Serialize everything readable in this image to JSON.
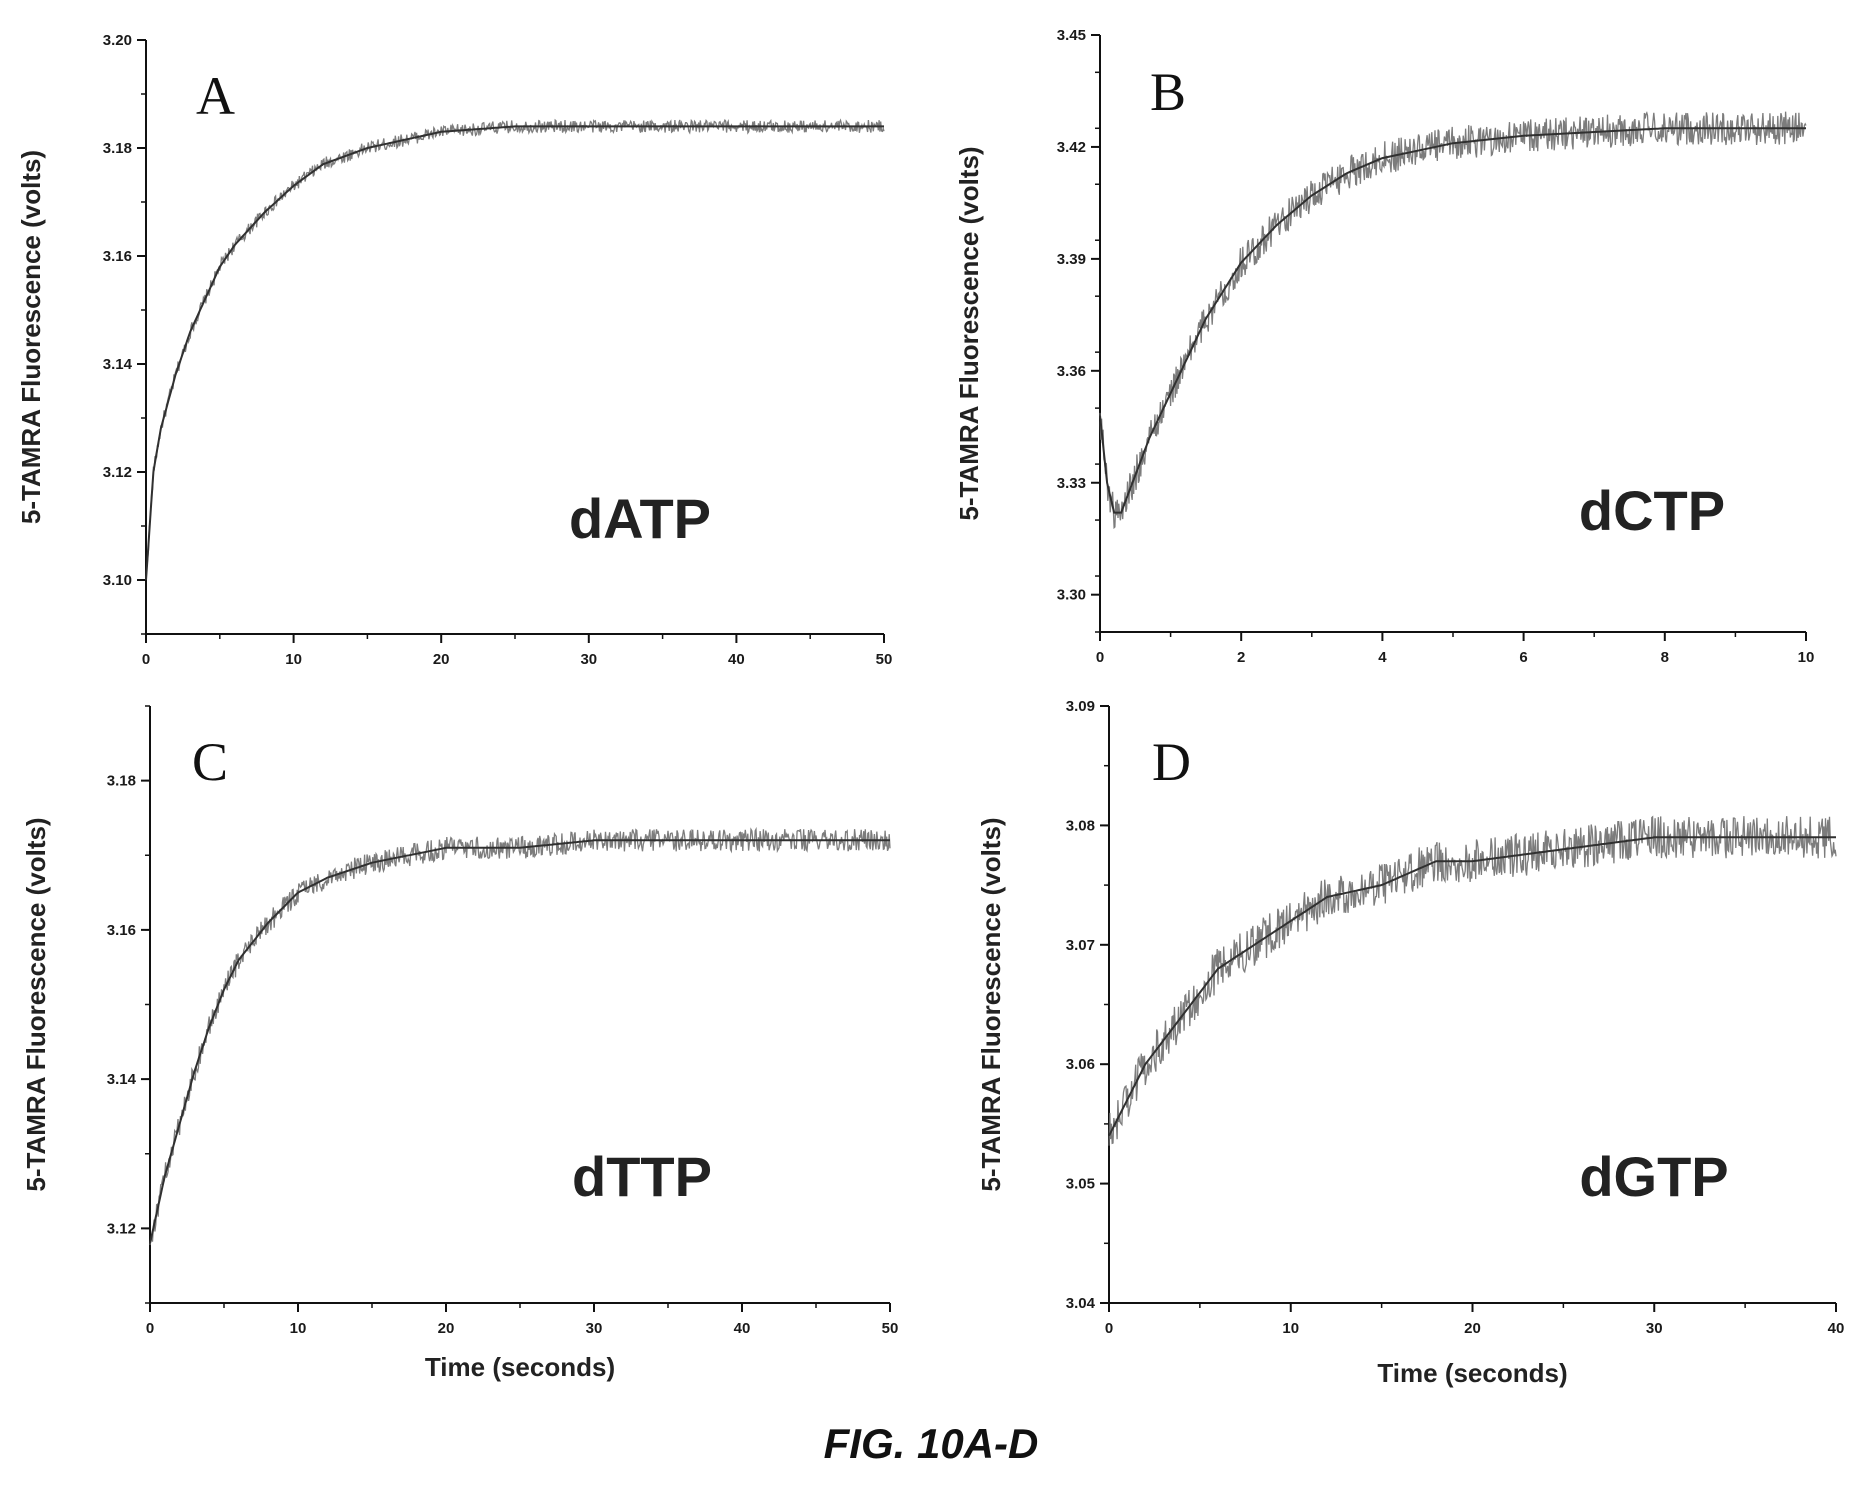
{
  "caption": "FIG. 10A-D",
  "colors": {
    "trace": "#6e6e6e",
    "fit": "#303030",
    "axis": "#111111"
  },
  "chart_data": [
    {
      "id": "A",
      "type": "line",
      "panel_label": "A",
      "annotation": "dATP",
      "xlabel": "",
      "ylabel": "5-TAMRA Fluorescence (volts)",
      "xlim": [
        0,
        50
      ],
      "ylim": [
        3.09,
        3.2
      ],
      "xticks": [
        "0",
        "10",
        "20",
        "30",
        "40",
        "50"
      ],
      "yticks": [
        "3.10",
        "3.12",
        "3.14",
        "3.16",
        "3.18",
        "3.20"
      ],
      "series": [
        {
          "x": [
            0,
            0.5,
            1,
            2,
            3,
            4,
            5,
            6,
            8,
            10,
            12,
            15,
            20,
            25,
            30,
            35,
            40,
            45,
            50
          ],
          "y": [
            3.1,
            3.12,
            3.128,
            3.138,
            3.146,
            3.152,
            3.158,
            3.162,
            3.168,
            3.173,
            3.177,
            3.18,
            3.183,
            3.184,
            3.184,
            3.184,
            3.184,
            3.184,
            3.184
          ],
          "noise": 0.0012
        }
      ]
    },
    {
      "id": "B",
      "type": "line",
      "panel_label": "B",
      "annotation": "dCTP",
      "xlabel": "",
      "ylabel": "5-TAMRA Fluorescence (volts)",
      "xlim": [
        0,
        10
      ],
      "ylim": [
        3.29,
        3.45
      ],
      "xticks": [
        "0",
        "2",
        "4",
        "6",
        "8",
        "10"
      ],
      "yticks": [
        "3.30",
        "3.33",
        "3.36",
        "3.39",
        "3.42",
        "3.45"
      ],
      "series": [
        {
          "x": [
            0,
            0.1,
            0.2,
            0.3,
            0.5,
            0.7,
            1,
            1.5,
            2,
            2.5,
            3,
            3.5,
            4,
            5,
            6,
            7,
            8,
            9,
            10
          ],
          "y": [
            3.348,
            3.33,
            3.322,
            3.322,
            3.332,
            3.342,
            3.354,
            3.374,
            3.389,
            3.399,
            3.407,
            3.413,
            3.417,
            3.421,
            3.423,
            3.424,
            3.425,
            3.425,
            3.425
          ],
          "noise": 0.0045
        }
      ]
    },
    {
      "id": "C",
      "type": "line",
      "panel_label": "C",
      "annotation": "dTTP",
      "xlabel": "Time (seconds)",
      "ylabel": "5-TAMRA Fluorescence (volts)",
      "xlim": [
        0,
        50
      ],
      "ylim": [
        3.11,
        3.19
      ],
      "xticks": [
        "0",
        "10",
        "20",
        "30",
        "40",
        "50"
      ],
      "yticks": [
        "3.12",
        "3.14",
        "3.16",
        "3.18"
      ],
      "series": [
        {
          "x": [
            0,
            1,
            2,
            3,
            4,
            5,
            6,
            8,
            10,
            12,
            15,
            20,
            25,
            30,
            35,
            40,
            45,
            50
          ],
          "y": [
            3.118,
            3.127,
            3.134,
            3.141,
            3.147,
            3.152,
            3.156,
            3.161,
            3.165,
            3.167,
            3.169,
            3.171,
            3.171,
            3.172,
            3.172,
            3.172,
            3.172,
            3.172
          ],
          "noise": 0.0015
        }
      ]
    },
    {
      "id": "D",
      "type": "line",
      "panel_label": "D",
      "annotation": "dGTP",
      "xlabel": "Time (seconds)",
      "ylabel": "5-TAMRA Fluorescence (volts)",
      "xlim": [
        0,
        40
      ],
      "ylim": [
        3.04,
        3.09
      ],
      "xticks": [
        "0",
        "10",
        "20",
        "30",
        "40"
      ],
      "yticks": [
        "3.04",
        "3.05",
        "3.06",
        "3.07",
        "3.08",
        "3.09"
      ],
      "series": [
        {
          "x": [
            0,
            1,
            2,
            4,
            6,
            8,
            10,
            12,
            15,
            18,
            20,
            25,
            30,
            35,
            40
          ],
          "y": [
            3.054,
            3.057,
            3.06,
            3.064,
            3.068,
            3.07,
            3.072,
            3.074,
            3.075,
            3.077,
            3.077,
            3.078,
            3.079,
            3.079,
            3.079
          ],
          "noise": 0.0018
        }
      ]
    }
  ]
}
